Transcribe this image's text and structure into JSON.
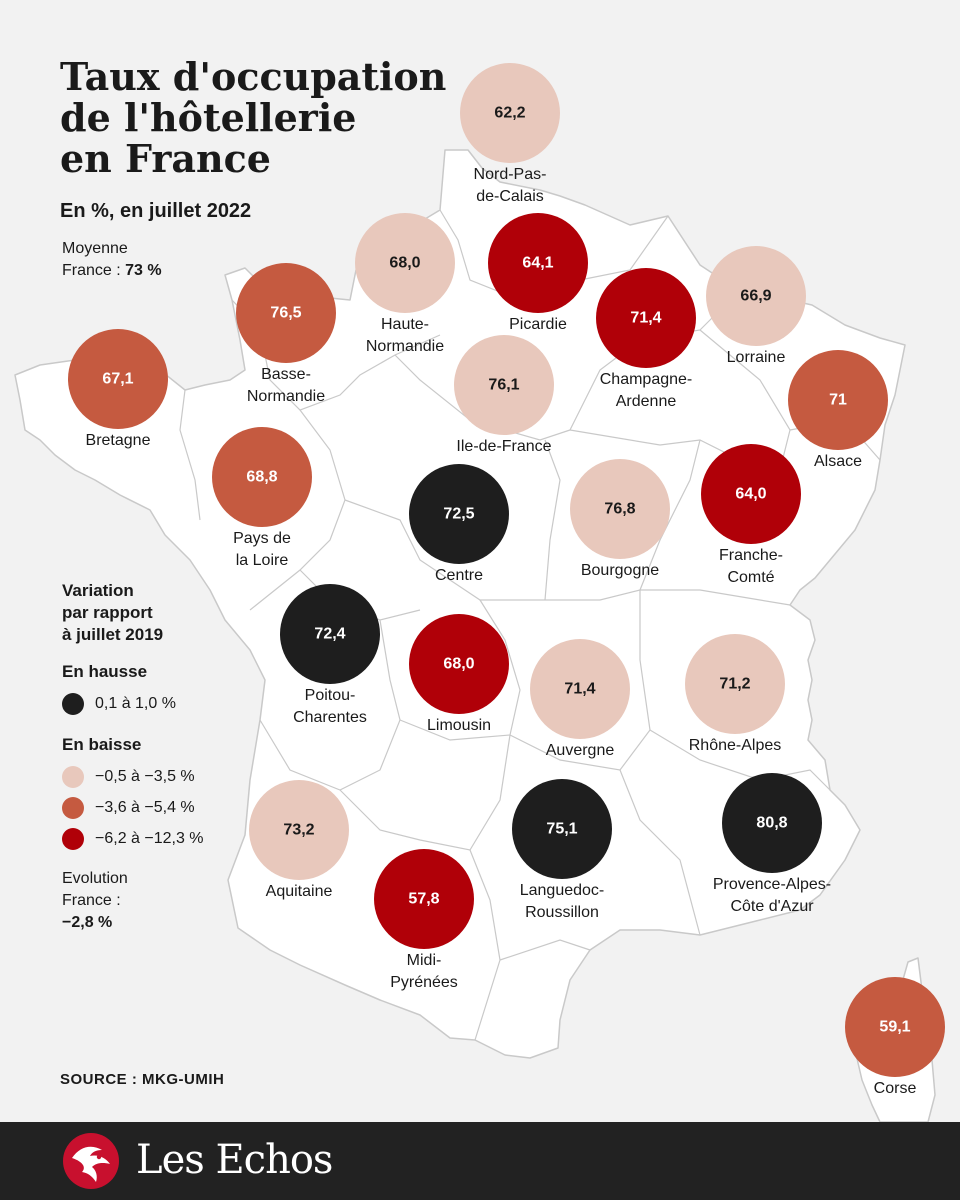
{
  "title_lines": [
    "Taux d'occupation",
    "de l'hôtellerie",
    "en France"
  ],
  "subtitle": "En %, en juillet 2022",
  "average": {
    "line1": "Moyenne",
    "line2_prefix": "France : ",
    "value": "73 %"
  },
  "legend": {
    "title_lines": [
      "Variation",
      "par rapport",
      "à juillet 2019"
    ],
    "up_heading": "En hausse",
    "up_items": [
      {
        "label": "0,1 à 1,0 %",
        "color": "#1e1e1e"
      }
    ],
    "down_heading": "En baisse",
    "down_items": [
      {
        "label": "−0,5 à −3,5 %",
        "color": "#e8c8bc"
      },
      {
        "label": "−3,6 à −5,4 %",
        "color": "#c55a40"
      },
      {
        "label": "−6,2 à −12,3 %",
        "color": "#b00008"
      }
    ],
    "evolution": {
      "line1": "Evolution",
      "line2_prefix": "France : ",
      "value": "−2,8 %"
    }
  },
  "source": "SOURCE : MKG-UMIH",
  "brand": "Les Echos",
  "colors": {
    "cat1": "#1e1e1e",
    "cat2": "#e8c8bc",
    "cat3": "#c55a40",
    "cat4": "#b00008"
  },
  "regions": [
    {
      "name": [
        "Nord-Pas-",
        "de-Calais"
      ],
      "value": "62,2",
      "category": 2
    },
    {
      "name": [
        "Haute-",
        "Normandie"
      ],
      "value": "68,0",
      "category": 2
    },
    {
      "name": [
        "Picardie"
      ],
      "value": "64,1",
      "category": 4
    },
    {
      "name": [
        "Champagne-",
        "Ardenne"
      ],
      "value": "71,4",
      "category": 4
    },
    {
      "name": [
        "Lorraine"
      ],
      "value": "66,9",
      "category": 2
    },
    {
      "name": [
        "Basse-",
        "Normandie"
      ],
      "value": "76,5",
      "category": 3
    },
    {
      "name": [
        "Bretagne"
      ],
      "value": "67,1",
      "category": 3
    },
    {
      "name": [
        "Ile-de-France"
      ],
      "value": "76,1",
      "category": 2
    },
    {
      "name": [
        "Alsace"
      ],
      "value": "71",
      "category": 3
    },
    {
      "name": [
        "Pays de",
        "la Loire"
      ],
      "value": "68,8",
      "category": 3
    },
    {
      "name": [
        "Centre"
      ],
      "value": "72,5",
      "category": 1
    },
    {
      "name": [
        "Bourgogne"
      ],
      "value": "76,8",
      "category": 2
    },
    {
      "name": [
        "Franche-",
        "Comté"
      ],
      "value": "64,0",
      "category": 4
    },
    {
      "name": [
        "Poitou-",
        "Charentes"
      ],
      "value": "72,4",
      "category": 1
    },
    {
      "name": [
        "Limousin"
      ],
      "value": "68,0",
      "category": 4
    },
    {
      "name": [
        "Auvergne"
      ],
      "value": "71,4",
      "category": 2
    },
    {
      "name": [
        "Rhône-Alpes"
      ],
      "value": "71,2",
      "category": 2
    },
    {
      "name": [
        "Aquitaine"
      ],
      "value": "73,2",
      "category": 2
    },
    {
      "name": [
        "Languedoc-",
        "Roussillon"
      ],
      "value": "75,1",
      "category": 1
    },
    {
      "name": [
        "Provence-Alpes-",
        "Côte d'Azur"
      ],
      "value": "80,8",
      "category": 1
    },
    {
      "name": [
        "Midi-",
        "Pyrénées"
      ],
      "value": "57,8",
      "category": 4
    },
    {
      "name": [
        "Corse"
      ],
      "value": "59,1",
      "category": 3
    }
  ]
}
